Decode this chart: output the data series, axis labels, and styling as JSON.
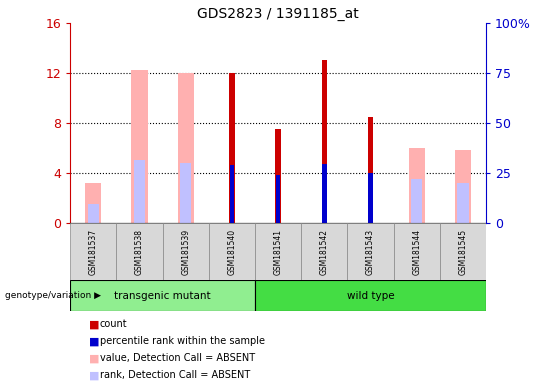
{
  "title": "GDS2823 / 1391185_at",
  "samples": [
    "GSM181537",
    "GSM181538",
    "GSM181539",
    "GSM181540",
    "GSM181541",
    "GSM181542",
    "GSM181543",
    "GSM181544",
    "GSM181545"
  ],
  "groups": [
    "transgenic mutant",
    "transgenic mutant",
    "transgenic mutant",
    "transgenic mutant",
    "wild type",
    "wild type",
    "wild type",
    "wild type",
    "wild type"
  ],
  "count_values": [
    null,
    null,
    null,
    12.0,
    7.5,
    13.0,
    8.5,
    null,
    null
  ],
  "rank_values": [
    null,
    null,
    null,
    4.6,
    3.8,
    4.7,
    4.0,
    null,
    null
  ],
  "absent_value": [
    3.2,
    12.2,
    12.0,
    null,
    null,
    null,
    null,
    6.0,
    5.8
  ],
  "absent_rank": [
    1.5,
    5.0,
    4.8,
    null,
    null,
    null,
    null,
    3.5,
    3.2
  ],
  "ylim_left": [
    0,
    16
  ],
  "ylim_right": [
    0,
    100
  ],
  "yticks_left": [
    0,
    4,
    8,
    12,
    16
  ],
  "yticks_right": [
    0,
    25,
    50,
    75,
    100
  ],
  "ytick_labels_left": [
    "0",
    "4",
    "8",
    "12",
    "16"
  ],
  "ytick_labels_right": [
    "0",
    "25",
    "50",
    "75",
    "100%"
  ],
  "ylabel_left_color": "#cc0000",
  "ylabel_right_color": "#0000cc",
  "count_color": "#cc0000",
  "rank_color": "#0000cc",
  "absent_val_color": "#ffb0b0",
  "absent_rank_color": "#c0c0ff",
  "bg_color": "#ffffff",
  "legend_items": [
    {
      "color": "#cc0000",
      "label": "count"
    },
    {
      "color": "#0000cc",
      "label": "percentile rank within the sample"
    },
    {
      "color": "#ffb0b0",
      "label": "value, Detection Call = ABSENT"
    },
    {
      "color": "#c0c0ff",
      "label": "rank, Detection Call = ABSENT"
    }
  ],
  "genotype_label": "genotype/variation",
  "group_colors": {
    "transgenic mutant": "#90ee90",
    "wild type": "#44dd44"
  }
}
